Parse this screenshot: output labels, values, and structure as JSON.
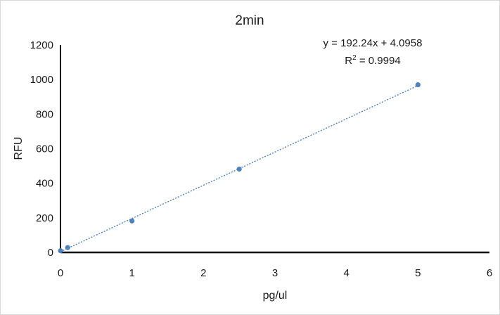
{
  "chart_data": {
    "type": "scatter",
    "title": "2min",
    "xlabel": "pg/ul",
    "ylabel": "RFU",
    "xlim": [
      0,
      6
    ],
    "ylim": [
      0,
      1200
    ],
    "xticks": [
      "0",
      "1",
      "2",
      "3",
      "4",
      "5",
      "6"
    ],
    "yticks": [
      "0",
      "200",
      "400",
      "600",
      "800",
      "1000",
      "1200"
    ],
    "grid": false,
    "series": [
      {
        "points": [
          {
            "x": 0,
            "y": 10
          },
          {
            "x": 0.1,
            "y": 28
          },
          {
            "x": 1,
            "y": 182
          },
          {
            "x": 2.5,
            "y": 482
          },
          {
            "x": 5,
            "y": 970
          }
        ],
        "color": "#4f81bd"
      }
    ],
    "trendline": {
      "type": "linear",
      "slope": 192.24,
      "intercept": 4.0958,
      "x_range": [
        0,
        5
      ],
      "style": "dotted",
      "color": "#4f81bd"
    },
    "annotations": {
      "equation": "y = 192.24x + 4.0958",
      "r2_prefix": "R",
      "r2_sup": "2",
      "r2_value": " = 0.9994"
    }
  }
}
